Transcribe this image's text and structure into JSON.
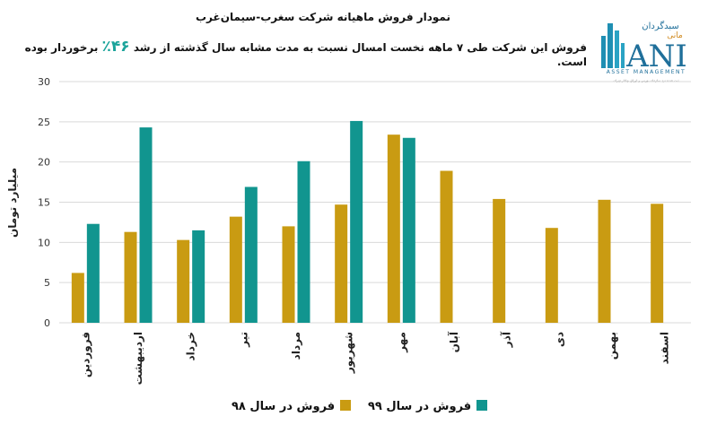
{
  "header": {
    "title": "نمودار فروش ماهیانه شرکت سغرب-سیمان‌غرب",
    "subtitle_before": "فروش این شرکت طی ۷ ماهه نخست امسال نسبت به مدت مشابه سال گذشته از رشد",
    "subtitle_highlight": "۴۶٪",
    "subtitle_after": "برخوردار بوده است."
  },
  "logo": {
    "brand_fa": "سبدگردان",
    "brand_fa2": "مانی",
    "brand_en": "ANI",
    "tagline_en": "ASSET MANAGEMENT",
    "tagline_fa": "ثبت شده نزد سازمان بورس و اوراق بهادار تهران"
  },
  "colors": {
    "series_98": "#c99b12",
    "series_99": "#11958f",
    "highlight": "#1aa39a",
    "grid": "#d9d9d9"
  },
  "chart_data": {
    "type": "bar",
    "ylabel": "میلیارد تومان",
    "ylim": [
      0,
      30
    ],
    "yticks": [
      0,
      5,
      10,
      15,
      20,
      25,
      30
    ],
    "grid": true,
    "legend_position": "bottom",
    "categories": [
      "فروردین",
      "اردیبهشت",
      "خرداد",
      "تیر",
      "مرداد",
      "شهریور",
      "مهر",
      "آبان",
      "آذر",
      "دی",
      "بهمن",
      "اسفند"
    ],
    "series": [
      {
        "name": "فروش در سال ۹۸",
        "color": "#c99b12",
        "values": [
          6.2,
          11.3,
          10.3,
          13.2,
          12.0,
          14.7,
          23.4,
          18.9,
          15.4,
          11.8,
          15.3,
          14.8
        ]
      },
      {
        "name": "فروش در سال ۹۹",
        "color": "#11958f",
        "values": [
          12.3,
          24.3,
          11.5,
          16.9,
          20.1,
          25.1,
          23.0,
          null,
          null,
          null,
          null,
          null
        ]
      }
    ]
  }
}
